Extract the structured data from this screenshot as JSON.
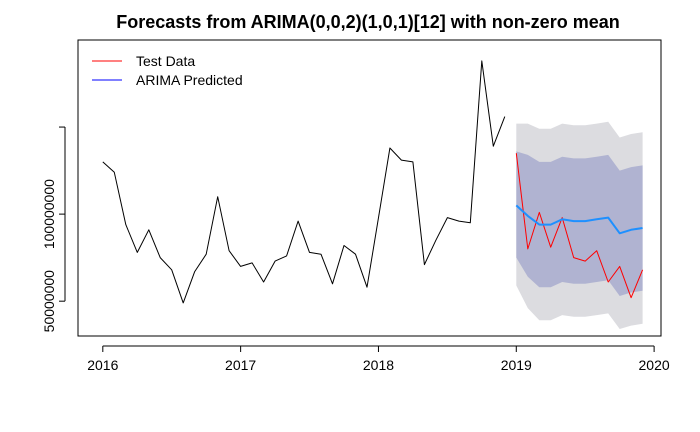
{
  "chart_data": {
    "type": "line",
    "title": "Forecasts from ARIMA(0,0,2)(1,0,1)[12] with non-zero mean",
    "xlabel": "",
    "ylabel": "",
    "xlim": [
      2015.82,
      2020.05
    ],
    "ylim": [
      30000000,
      200000000
    ],
    "x_ticks": [
      {
        "value": 2016,
        "label": "2016"
      },
      {
        "value": 2017,
        "label": "2017"
      },
      {
        "value": 2018,
        "label": "2018"
      },
      {
        "value": 2019,
        "label": "2019"
      },
      {
        "value": 2020,
        "label": "2020"
      }
    ],
    "y_ticks": [
      {
        "value": 50000000,
        "label": "50000000"
      },
      {
        "value": 100000000,
        "label": "100000000"
      },
      {
        "value": 150000000,
        "label": ""
      }
    ],
    "legend": {
      "position": "top-left",
      "entries": [
        {
          "label": "Test Data",
          "color": "#ff0000"
        },
        {
          "label": "ARIMA Predicted",
          "color": "#0000ff"
        }
      ]
    },
    "history": {
      "color": "#000000",
      "start": 2016,
      "step": 0.0833333,
      "values": [
        130000000,
        124000000,
        94000000,
        78000000,
        91000000,
        75000000,
        68000000,
        49000000,
        67000000,
        77000000,
        110000000,
        79000000,
        70000000,
        72000000,
        61000000,
        73000000,
        76000000,
        96000000,
        78000000,
        77000000,
        60000000,
        82000000,
        77000000,
        58000000,
        98000000,
        138000000,
        131000000,
        130000000,
        71000000,
        85000000,
        98000000,
        96000000,
        95000000,
        188000000,
        139000000,
        156000000
      ]
    },
    "test_data": {
      "name": "Test Data",
      "color": "#ff0000",
      "start": 2019,
      "step": 0.0833333,
      "values": [
        135000000,
        80000000,
        101000000,
        81000000,
        98000000,
        75000000,
        73000000,
        79000000,
        61000000,
        70000000,
        52000000,
        68000000
      ]
    },
    "forecast": {
      "name": "ARIMA Predicted",
      "color": "#1e90ff",
      "start": 2019,
      "step": 0.0833333,
      "values": [
        105000000,
        99000000,
        94000000,
        94000000,
        97000000,
        96000000,
        96000000,
        97000000,
        98000000,
        89000000,
        91000000,
        92000000
      ],
      "lo80": [
        75000000,
        64000000,
        58000000,
        58000000,
        61000000,
        60000000,
        60000000,
        61000000,
        62000000,
        53000000,
        55000000,
        56000000
      ],
      "hi80": [
        136000000,
        134000000,
        130000000,
        130000000,
        133000000,
        132000000,
        132000000,
        133000000,
        134000000,
        125000000,
        127000000,
        128000000
      ],
      "lo95": [
        59000000,
        46000000,
        39000000,
        39000000,
        42000000,
        41000000,
        41000000,
        42000000,
        43000000,
        34000000,
        36000000,
        37000000
      ],
      "hi95": [
        152000000,
        152000000,
        149000000,
        149000000,
        152000000,
        151000000,
        151000000,
        152000000,
        153000000,
        144000000,
        146000000,
        147000000
      ],
      "band80_color": "#b0b3d1",
      "band95_color": "#dcdce0"
    }
  }
}
